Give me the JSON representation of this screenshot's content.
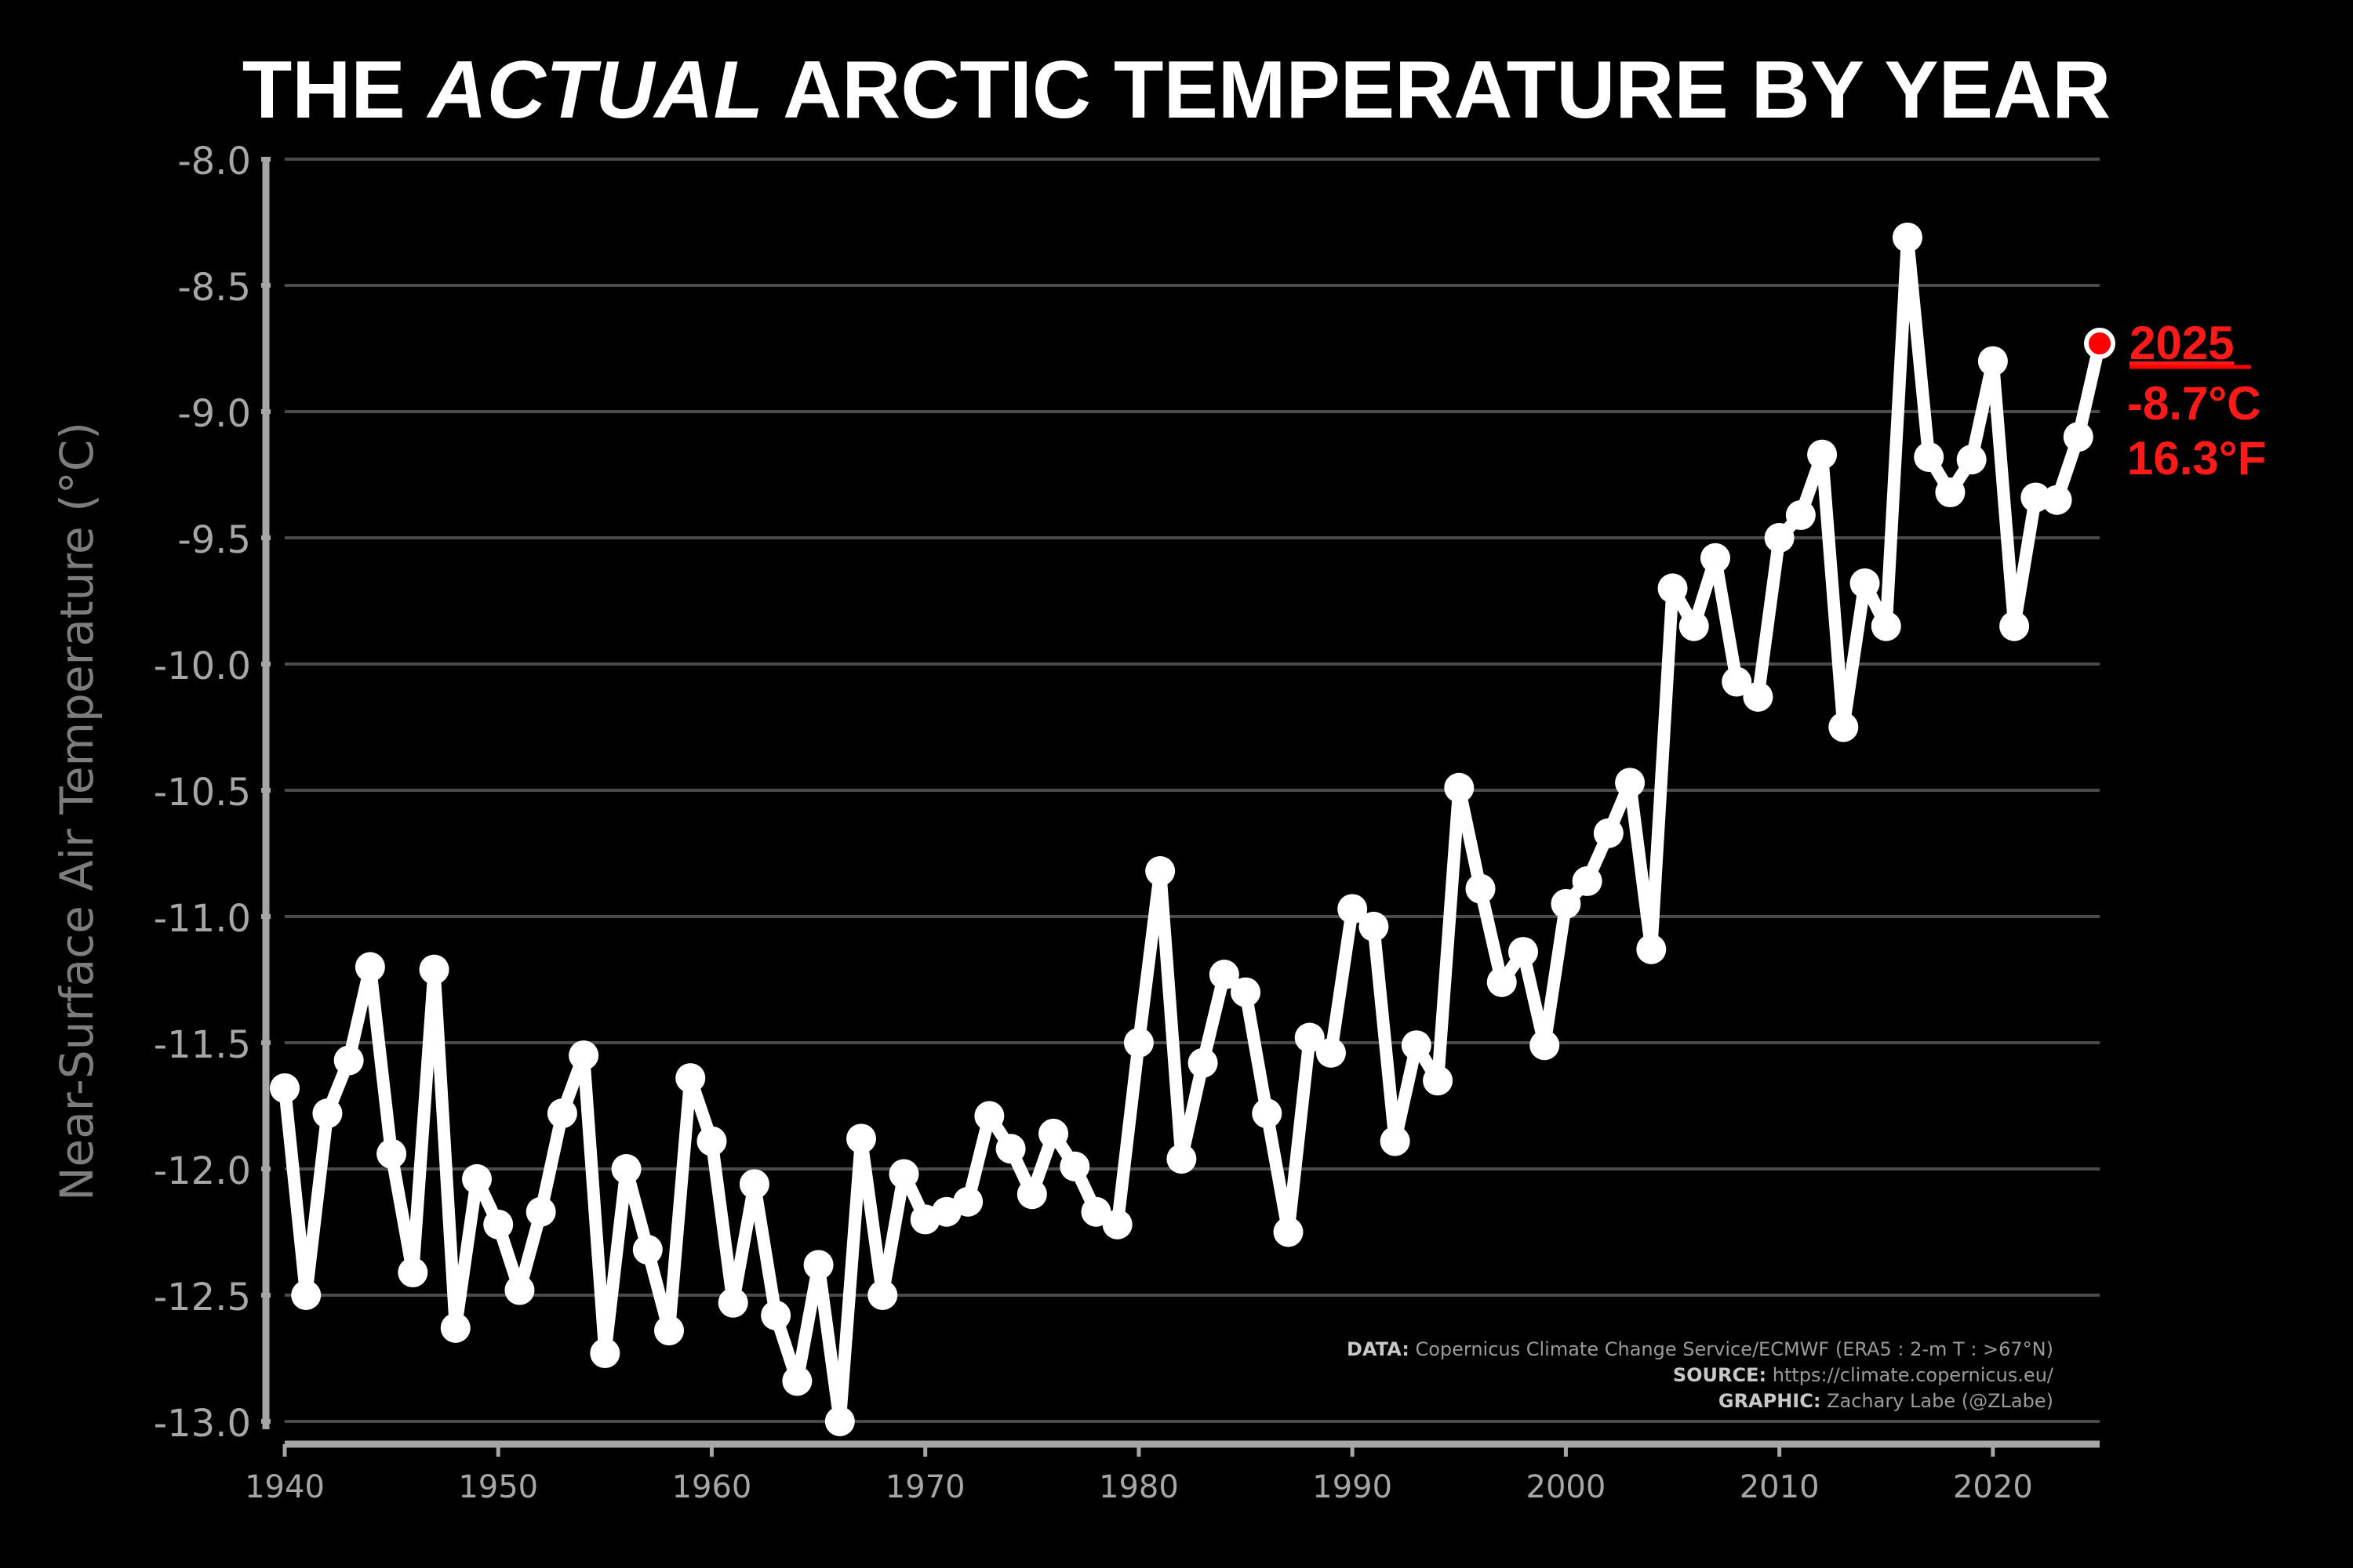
{
  "colors": {
    "background": "#000000",
    "line": "#ffffff",
    "grid": "#4a4a4a",
    "axis": "#a6a6a6",
    "highlight": "#ff0000"
  },
  "title": {
    "prefix": "THE ",
    "emphasis": "ACTUAL",
    "suffix": " ARCTIC TEMPERATURE BY YEAR"
  },
  "annotation": {
    "year": "2025",
    "celsius": "-8.7°C",
    "fahrenheit": "16.3°F"
  },
  "credits": {
    "data_label": "DATA:",
    "data_text": " Copernicus Climate Change Service/ECMWF (ERA5 : 2-m T : >67°N)",
    "source_label": "SOURCE:",
    "source_text": " https://climate.copernicus.eu/",
    "graphic_label": "GRAPHIC:",
    "graphic_text": " Zachary Labe (@ZLabe)"
  },
  "chart_data": {
    "type": "line",
    "ylabel": "Near-Surface Air Temperature (°C)",
    "xlim": [
      1940,
      2025
    ],
    "ylim": [
      -13.0,
      -8.0
    ],
    "grid": true,
    "x_ticks": [
      1940,
      1950,
      1960,
      1970,
      1980,
      1990,
      2000,
      2010,
      2020
    ],
    "y_ticks": [
      "-8.0",
      "-8.5",
      "-9.0",
      "-9.5",
      "-10.0",
      "-10.5",
      "-11.0",
      "-11.5",
      "-12.0",
      "-12.5",
      "-13.0"
    ],
    "highlight_year": 2025,
    "years": [
      1940,
      1941,
      1942,
      1943,
      1944,
      1945,
      1946,
      1947,
      1948,
      1949,
      1950,
      1951,
      1952,
      1953,
      1954,
      1955,
      1956,
      1957,
      1958,
      1959,
      1960,
      1961,
      1962,
      1963,
      1964,
      1965,
      1966,
      1967,
      1968,
      1969,
      1970,
      1971,
      1972,
      1973,
      1974,
      1975,
      1976,
      1977,
      1978,
      1979,
      1980,
      1981,
      1982,
      1983,
      1984,
      1985,
      1986,
      1987,
      1988,
      1989,
      1990,
      1991,
      1992,
      1993,
      1994,
      1995,
      1996,
      1997,
      1998,
      1999,
      2000,
      2001,
      2002,
      2003,
      2004,
      2005,
      2006,
      2007,
      2008,
      2009,
      2010,
      2011,
      2012,
      2013,
      2014,
      2015,
      2016,
      2017,
      2018,
      2019,
      2020,
      2021,
      2022,
      2023,
      2024,
      2025
    ],
    "values": [
      -11.68,
      -12.5,
      -11.78,
      -11.57,
      -11.2,
      -11.94,
      -12.41,
      -11.21,
      -12.63,
      -12.04,
      -12.22,
      -12.48,
      -12.17,
      -11.78,
      -11.55,
      -12.73,
      -12.0,
      -12.32,
      -12.64,
      -11.64,
      -11.89,
      -12.53,
      -12.06,
      -12.58,
      -12.84,
      -12.38,
      -13.0,
      -11.88,
      -12.5,
      -12.02,
      -12.2,
      -12.17,
      -12.13,
      -11.79,
      -11.92,
      -12.1,
      -11.86,
      -11.99,
      -12.17,
      -12.22,
      -11.5,
      -10.82,
      -11.96,
      -11.58,
      -11.23,
      -11.3,
      -11.78,
      -12.25,
      -11.48,
      -11.54,
      -10.97,
      -11.04,
      -11.89,
      -11.51,
      -11.65,
      -10.49,
      -10.89,
      -11.26,
      -11.14,
      -11.51,
      -10.95,
      -10.86,
      -10.67,
      -10.47,
      -11.13,
      -9.7,
      -9.85,
      -9.58,
      -10.07,
      -10.13,
      -9.5,
      -9.41,
      -9.17,
      -10.25,
      -9.68,
      -9.85,
      -8.31,
      -9.18,
      -9.32,
      -9.19,
      -8.8,
      -9.85,
      -9.34,
      -9.35,
      -9.1,
      -8.73
    ]
  }
}
